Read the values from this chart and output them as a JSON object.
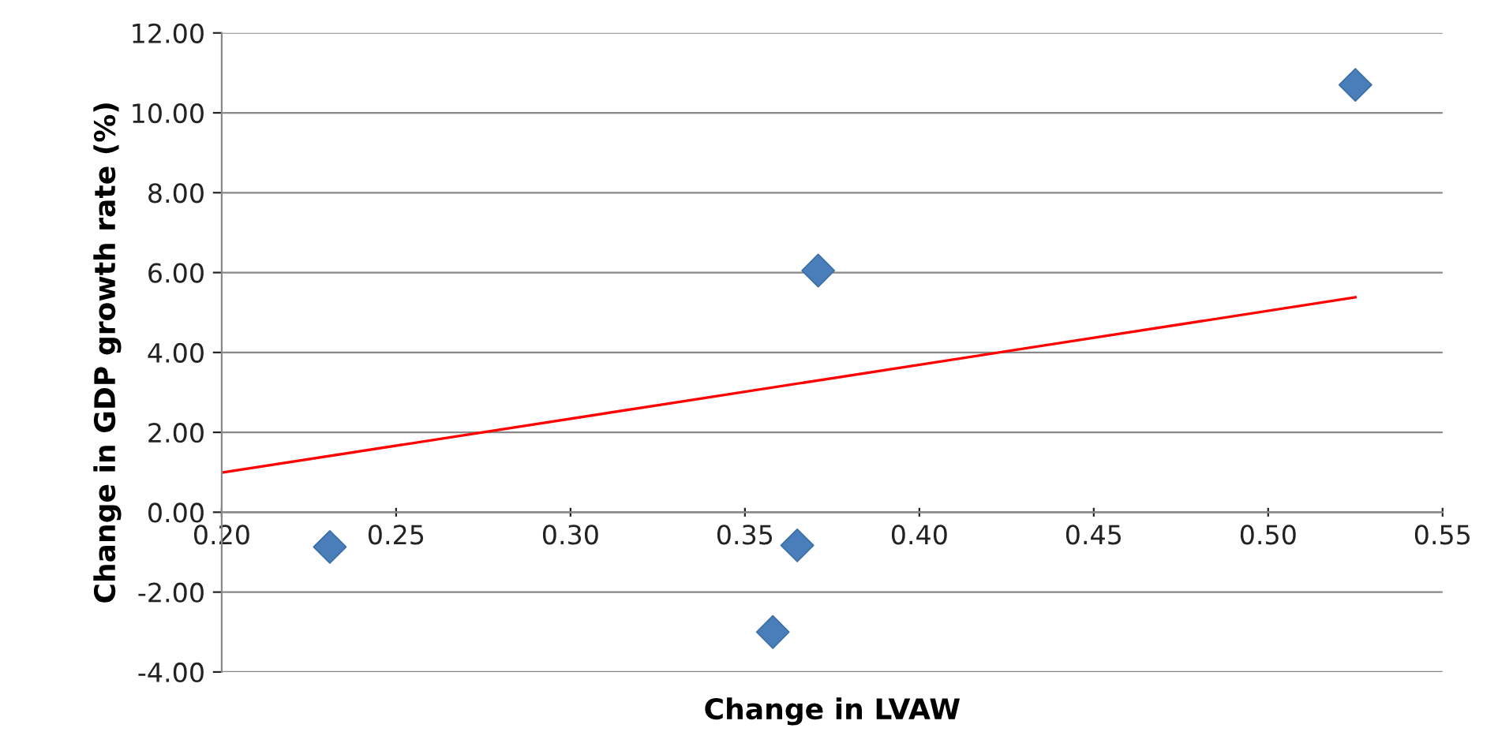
{
  "chart_data": {
    "type": "scatter",
    "xlabel": "Change in LVAW",
    "ylabel": "Change in GDP growth rate (%)",
    "series": [
      {
        "color": "#4a7ebb",
        "marker": "diamond",
        "x": [
          0.231,
          0.365,
          0.358,
          0.371,
          0.525
        ],
        "values": [
          -0.87,
          -0.83,
          -3.0,
          6.05,
          10.7
        ]
      },
      {
        "type": "line",
        "color": "#ff0000",
        "marker": "none",
        "line_style": "solid",
        "x": [
          0.2,
          0.525
        ],
        "values": [
          0.99,
          5.38
        ]
      }
    ],
    "xlim": [
      0.2,
      0.55
    ],
    "xticks": [
      {
        "value": 0.2,
        "label": "0.20"
      },
      {
        "value": 0.25,
        "label": "0.25"
      },
      {
        "value": 0.3,
        "label": "0.30"
      },
      {
        "value": 0.35,
        "label": "0.35"
      },
      {
        "value": 0.4,
        "label": "0.40"
      },
      {
        "value": 0.45,
        "label": "0.45"
      },
      {
        "value": 0.5,
        "label": "0.50"
      },
      {
        "value": 0.55,
        "label": "0.55"
      }
    ],
    "ylim": [
      -4,
      12
    ],
    "yticks": [
      {
        "value": -4,
        "label": "-4.00"
      },
      {
        "value": -2,
        "label": "-2.00"
      },
      {
        "value": 0,
        "label": "0.00"
      },
      {
        "value": 2,
        "label": "2.00"
      },
      {
        "value": 4,
        "label": "4.00"
      },
      {
        "value": 6,
        "label": "6.00"
      },
      {
        "value": 8,
        "label": "8.00"
      },
      {
        "value": 10,
        "label": "10.00"
      },
      {
        "value": 12,
        "label": "12.00"
      }
    ],
    "grid": "y"
  }
}
